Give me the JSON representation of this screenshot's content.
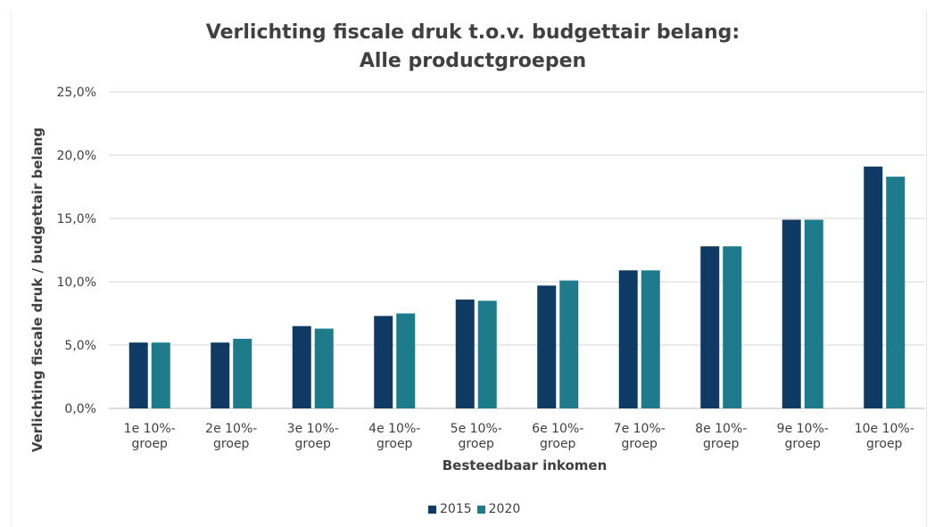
{
  "chart_data": {
    "type": "bar",
    "title": [
      "Verlichting fiscale druk t.o.v. budgettair belang:",
      "Alle productgroepen"
    ],
    "xlabel": "Besteedbaar inkomen",
    "ylabel": "Verlichting fiscale druk / budgettair belang",
    "categories": [
      [
        "1e 10%-",
        "groep"
      ],
      [
        "2e 10%-",
        "groep"
      ],
      [
        "3e 10%-",
        "groep"
      ],
      [
        "4e 10%-",
        "groep"
      ],
      [
        "5e 10%-",
        "groep"
      ],
      [
        "6e 10%-",
        "groep"
      ],
      [
        "7e 10%-",
        "groep"
      ],
      [
        "8e 10%-",
        "groep"
      ],
      [
        "9e 10%-",
        "groep"
      ],
      [
        "10e 10%-",
        "groep"
      ]
    ],
    "series": [
      {
        "name": "2015",
        "color": "#0e3a63",
        "values": [
          5.2,
          5.2,
          6.5,
          7.3,
          8.6,
          9.7,
          10.9,
          12.8,
          14.9,
          19.1
        ]
      },
      {
        "name": "2020",
        "color": "#1e7b8c",
        "values": [
          5.2,
          5.5,
          6.3,
          7.5,
          8.5,
          10.1,
          10.9,
          12.8,
          14.9,
          18.3
        ]
      }
    ],
    "yticks": [
      "0,0%",
      "5,0%",
      "10,0%",
      "15,0%",
      "20,0%",
      "25,0%"
    ],
    "ylim": [
      0,
      25
    ],
    "grid": true,
    "legend_position": "bottom"
  }
}
